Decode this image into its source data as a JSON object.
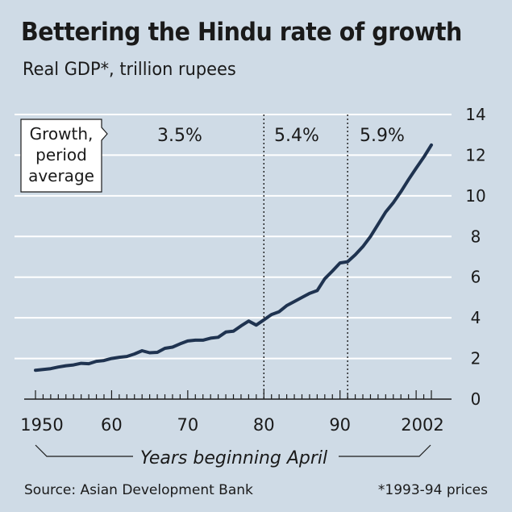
{
  "header": {
    "title": "Bettering the Hindu rate of growth",
    "subtitle": "Real GDP*, trillion rupees"
  },
  "annotation": {
    "lines": [
      "Growth,",
      "period",
      "average"
    ]
  },
  "footer": {
    "source": "Source: Asian Development Bank",
    "footnote": "*1993-94 prices"
  },
  "chart_data": {
    "type": "line",
    "title": "Bettering the Hindu rate of growth",
    "subtitle": "Real GDP*, trillion rupees",
    "xlabel": "Years beginning April",
    "ylabel": "",
    "xlim": [
      1950,
      2002
    ],
    "ylim": [
      0,
      14
    ],
    "x_tick_labels": [
      {
        "value": 1950,
        "label": "1950"
      },
      {
        "value": 1960,
        "label": "60"
      },
      {
        "value": 1970,
        "label": "70"
      },
      {
        "value": 1980,
        "label": "80"
      },
      {
        "value": 1990,
        "label": "90"
      },
      {
        "value": 2002,
        "label": "2002"
      }
    ],
    "y_ticks": [
      0,
      2,
      4,
      6,
      8,
      10,
      12,
      14
    ],
    "y_axis_side": "right",
    "grid": "horizontal",
    "series": [
      {
        "color": "#1f3350",
        "x": [
          1950,
          1951,
          1952,
          1953,
          1954,
          1955,
          1956,
          1957,
          1958,
          1959,
          1960,
          1961,
          1962,
          1963,
          1964,
          1965,
          1966,
          1967,
          1968,
          1969,
          1970,
          1971,
          1972,
          1973,
          1974,
          1975,
          1976,
          1977,
          1978,
          1979,
          1980,
          1981,
          1982,
          1983,
          1984,
          1985,
          1986,
          1987,
          1988,
          1989,
          1990,
          1991,
          1992,
          1993,
          1994,
          1995,
          1996,
          1997,
          1998,
          1999,
          2000,
          2001,
          2002
        ],
        "values": [
          1.42,
          1.46,
          1.5,
          1.58,
          1.64,
          1.68,
          1.76,
          1.74,
          1.86,
          1.9,
          2.0,
          2.06,
          2.1,
          2.22,
          2.38,
          2.28,
          2.3,
          2.5,
          2.56,
          2.72,
          2.86,
          2.9,
          2.9,
          3.0,
          3.04,
          3.3,
          3.34,
          3.6,
          3.84,
          3.64,
          3.9,
          4.16,
          4.3,
          4.6,
          4.8,
          5.0,
          5.2,
          5.34,
          5.92,
          6.3,
          6.7,
          6.76,
          7.1,
          7.5,
          8.0,
          8.6,
          9.2,
          9.66,
          10.2,
          10.8,
          11.36,
          11.9,
          12.5
        ]
      }
    ],
    "period_dividers": [
      1980,
      1991
    ],
    "period_labels": [
      {
        "label": "3.5%",
        "from": 1950,
        "to": 1980
      },
      {
        "label": "5.4%",
        "from": 1980,
        "to": 1991
      },
      {
        "label": "5.9%",
        "from": 1991,
        "to": 2002
      }
    ]
  }
}
